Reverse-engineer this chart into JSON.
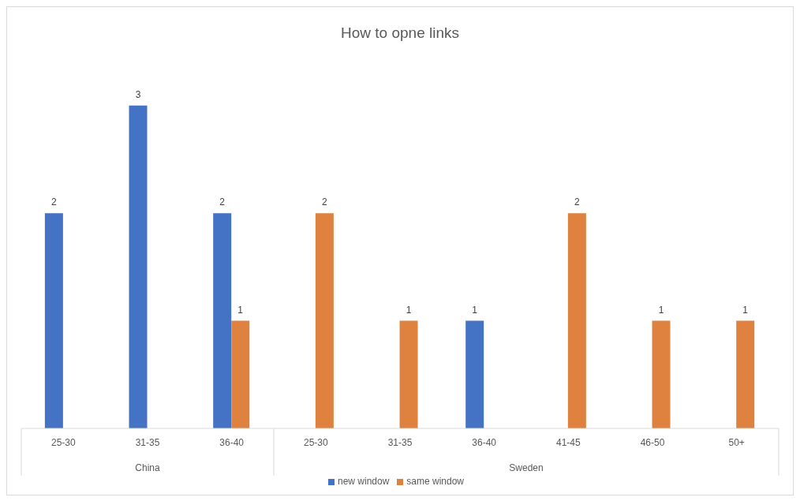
{
  "chart_data": {
    "type": "bar",
    "title": "How to opne links",
    "categories": [
      "25-30",
      "31-35",
      "36-40",
      "25-30",
      "31-35",
      "36-40",
      "41-45",
      "46-50",
      "50+"
    ],
    "series": [
      {
        "name": "new window",
        "color": "#4472c4",
        "values": [
          2,
          3,
          2,
          null,
          null,
          1,
          null,
          null,
          null
        ]
      },
      {
        "name": "same window",
        "color": "#e0823f",
        "values": [
          null,
          null,
          1,
          2,
          1,
          null,
          2,
          1,
          1
        ]
      }
    ],
    "data_labels": true,
    "grid": false,
    "legend": "bottom",
    "annotations": [
      "China",
      "Sweden"
    ]
  }
}
